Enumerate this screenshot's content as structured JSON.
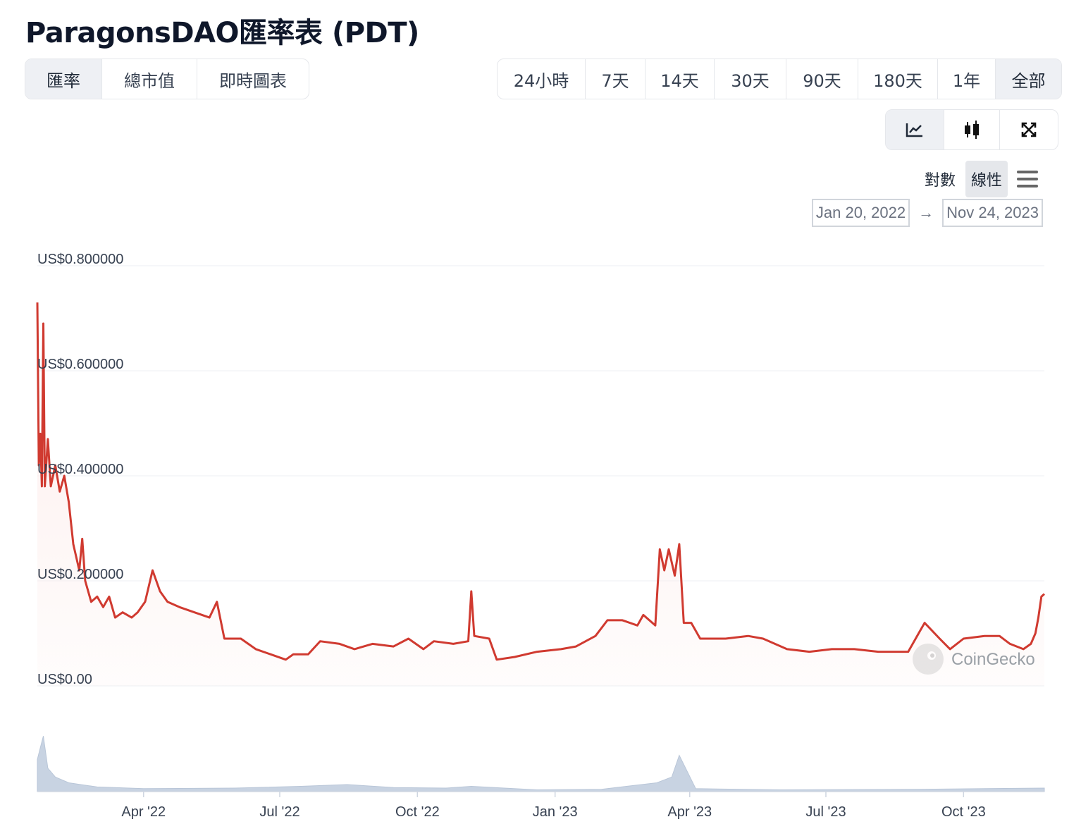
{
  "page_title": "ParagonsDAO匯率表 (PDT)",
  "tabs": [
    "匯率",
    "總市值",
    "即時圖表"
  ],
  "active_tab": 0,
  "periods": [
    "24小時",
    "7天",
    "14天",
    "30天",
    "90天",
    "180天",
    "1年",
    "全部"
  ],
  "active_period": 7,
  "chart_type_buttons": [
    "line-chart-icon",
    "candlestick-icon",
    "expand-icon"
  ],
  "scale": {
    "log_label": "對數",
    "linear_label": "線性",
    "active": "linear",
    "menu_icon": "hamburger-menu-icon"
  },
  "date_range": {
    "from": "Jan 20, 2022",
    "to": "Nov 24, 2023",
    "arrow": "→"
  },
  "watermark": "CoinGecko",
  "colors": {
    "line": "#d03a30",
    "fill": "#fdecea",
    "volume": "#c8d3e2",
    "grid": "#eceff3"
  },
  "chart_data": {
    "type": "line",
    "y_ticks": [
      "US$0.800000",
      "US$0.600000",
      "US$0.400000",
      "US$0.200000",
      "US$0.00"
    ],
    "ylim": [
      0,
      0.8
    ],
    "x_ticks": [
      "Apr '22",
      "Jul '22",
      "Oct '22",
      "Jan '23",
      "Apr '23",
      "Jul '23",
      "Oct '23"
    ],
    "xlim": [
      "2022-01-20",
      "2023-11-24"
    ],
    "series": [
      {
        "values": [
          [
            "2022-01-20",
            0.73
          ],
          [
            "2022-01-21",
            0.42
          ],
          [
            "2022-01-22",
            0.48
          ],
          [
            "2022-01-23",
            0.38
          ],
          [
            "2022-01-24",
            0.69
          ],
          [
            "2022-01-25",
            0.38
          ],
          [
            "2022-01-27",
            0.47
          ],
          [
            "2022-01-29",
            0.38
          ],
          [
            "2022-02-01",
            0.42
          ],
          [
            "2022-02-04",
            0.37
          ],
          [
            "2022-02-07",
            0.4
          ],
          [
            "2022-02-10",
            0.35
          ],
          [
            "2022-02-13",
            0.27
          ],
          [
            "2022-02-17",
            0.22
          ],
          [
            "2022-02-19",
            0.28
          ],
          [
            "2022-02-21",
            0.2
          ],
          [
            "2022-02-25",
            0.16
          ],
          [
            "2022-03-01",
            0.17
          ],
          [
            "2022-03-05",
            0.15
          ],
          [
            "2022-03-09",
            0.17
          ],
          [
            "2022-03-13",
            0.13
          ],
          [
            "2022-03-18",
            0.14
          ],
          [
            "2022-03-24",
            0.13
          ],
          [
            "2022-03-28",
            0.14
          ],
          [
            "2022-04-02",
            0.16
          ],
          [
            "2022-04-07",
            0.22
          ],
          [
            "2022-04-12",
            0.18
          ],
          [
            "2022-04-17",
            0.16
          ],
          [
            "2022-04-25",
            0.15
          ],
          [
            "2022-05-05",
            0.14
          ],
          [
            "2022-05-15",
            0.13
          ],
          [
            "2022-05-20",
            0.16
          ],
          [
            "2022-05-25",
            0.09
          ],
          [
            "2022-06-05",
            0.09
          ],
          [
            "2022-06-15",
            0.07
          ],
          [
            "2022-06-25",
            0.06
          ],
          [
            "2022-07-05",
            0.05
          ],
          [
            "2022-07-10",
            0.06
          ],
          [
            "2022-07-20",
            0.06
          ],
          [
            "2022-07-28",
            0.085
          ],
          [
            "2022-08-10",
            0.08
          ],
          [
            "2022-08-20",
            0.07
          ],
          [
            "2022-09-01",
            0.08
          ],
          [
            "2022-09-15",
            0.075
          ],
          [
            "2022-09-25",
            0.09
          ],
          [
            "2022-10-05",
            0.07
          ],
          [
            "2022-10-12",
            0.085
          ],
          [
            "2022-10-25",
            0.08
          ],
          [
            "2022-11-04",
            0.085
          ],
          [
            "2022-11-06",
            0.18
          ],
          [
            "2022-11-08",
            0.095
          ],
          [
            "2022-11-18",
            0.09
          ],
          [
            "2022-11-23",
            0.05
          ],
          [
            "2022-12-05",
            0.055
          ],
          [
            "2022-12-20",
            0.065
          ],
          [
            "2023-01-05",
            0.07
          ],
          [
            "2023-01-15",
            0.075
          ],
          [
            "2023-01-28",
            0.095
          ],
          [
            "2023-02-05",
            0.125
          ],
          [
            "2023-02-15",
            0.125
          ],
          [
            "2023-02-25",
            0.115
          ],
          [
            "2023-03-01",
            0.135
          ],
          [
            "2023-03-09",
            0.115
          ],
          [
            "2023-03-12",
            0.26
          ],
          [
            "2023-03-15",
            0.22
          ],
          [
            "2023-03-18",
            0.26
          ],
          [
            "2023-03-22",
            0.21
          ],
          [
            "2023-03-25",
            0.27
          ],
          [
            "2023-03-28",
            0.12
          ],
          [
            "2023-04-02",
            0.12
          ],
          [
            "2023-04-08",
            0.09
          ],
          [
            "2023-04-25",
            0.09
          ],
          [
            "2023-05-10",
            0.095
          ],
          [
            "2023-05-20",
            0.09
          ],
          [
            "2023-06-05",
            0.07
          ],
          [
            "2023-06-20",
            0.065
          ],
          [
            "2023-07-05",
            0.07
          ],
          [
            "2023-07-20",
            0.07
          ],
          [
            "2023-08-05",
            0.065
          ],
          [
            "2023-08-25",
            0.065
          ],
          [
            "2023-09-01",
            0.1
          ],
          [
            "2023-09-05",
            0.12
          ],
          [
            "2023-09-15",
            0.09
          ],
          [
            "2023-09-22",
            0.07
          ],
          [
            "2023-10-01",
            0.09
          ],
          [
            "2023-10-15",
            0.095
          ],
          [
            "2023-10-25",
            0.095
          ],
          [
            "2023-11-01",
            0.08
          ],
          [
            "2023-11-10",
            0.07
          ],
          [
            "2023-11-15",
            0.08
          ],
          [
            "2023-11-18",
            0.1
          ],
          [
            "2023-11-20",
            0.13
          ],
          [
            "2023-11-22",
            0.17
          ],
          [
            "2023-11-24",
            0.175
          ]
        ]
      }
    ],
    "volume_relative": [
      [
        "2022-01-20",
        0.55
      ],
      [
        "2022-01-22",
        0.75
      ],
      [
        "2022-01-24",
        0.95
      ],
      [
        "2022-01-27",
        0.4
      ],
      [
        "2022-02-01",
        0.25
      ],
      [
        "2022-02-10",
        0.15
      ],
      [
        "2022-03-01",
        0.08
      ],
      [
        "2022-04-01",
        0.05
      ],
      [
        "2022-06-01",
        0.06
      ],
      [
        "2022-07-15",
        0.09
      ],
      [
        "2022-08-15",
        0.12
      ],
      [
        "2022-09-15",
        0.07
      ],
      [
        "2022-10-20",
        0.06
      ],
      [
        "2022-11-06",
        0.09
      ],
      [
        "2022-12-20",
        0.03
      ],
      [
        "2023-02-01",
        0.04
      ],
      [
        "2023-03-10",
        0.15
      ],
      [
        "2023-03-20",
        0.25
      ],
      [
        "2023-03-25",
        0.62
      ],
      [
        "2023-04-05",
        0.05
      ],
      [
        "2023-06-01",
        0.03
      ],
      [
        "2023-09-01",
        0.04
      ],
      [
        "2023-11-24",
        0.06
      ]
    ]
  }
}
